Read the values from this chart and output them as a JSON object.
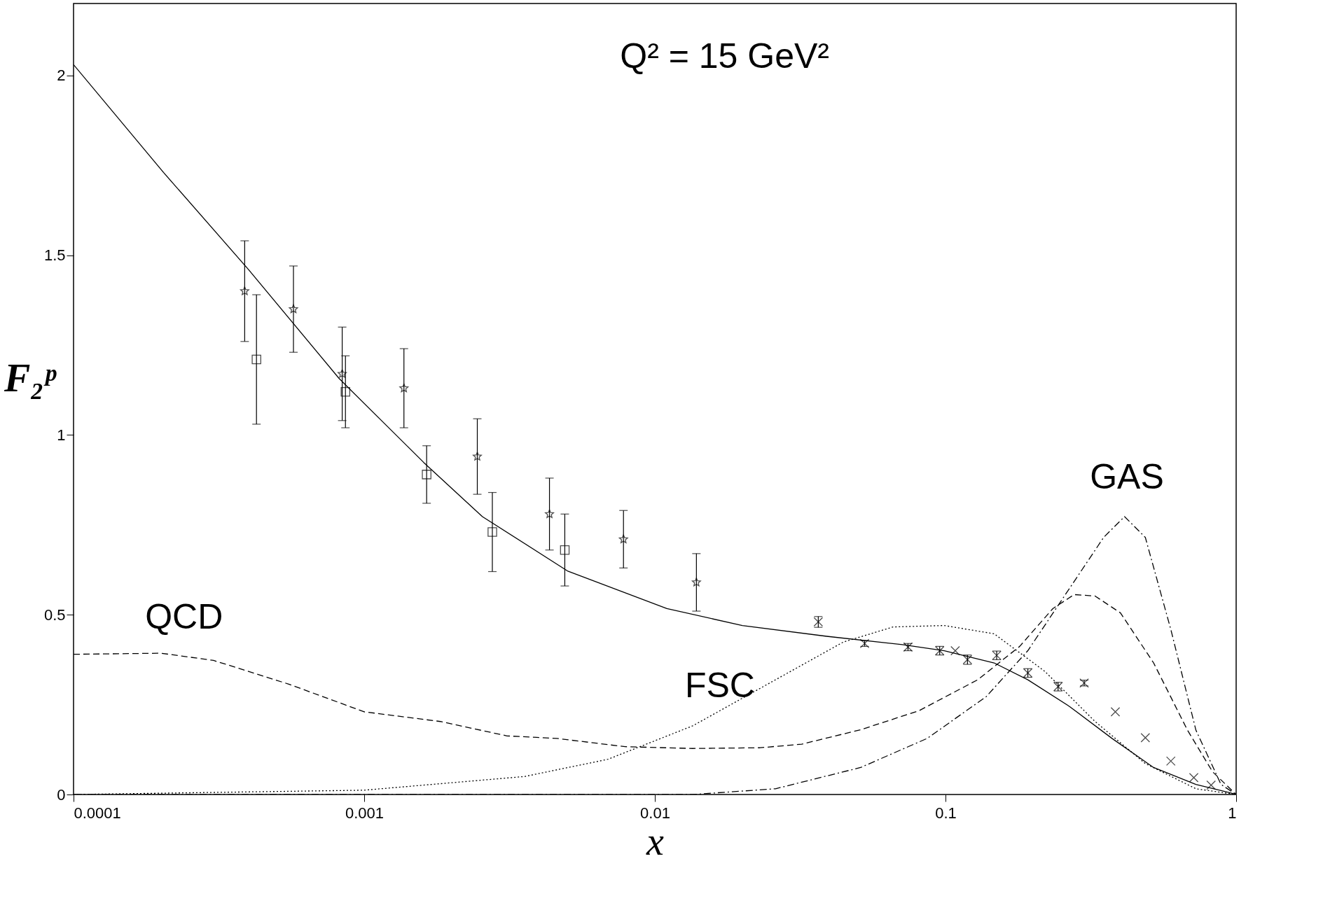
{
  "chart_data": {
    "type": "line",
    "xlabel": "x",
    "ylabel": "F₂ᵖ",
    "log": "x",
    "grid": false,
    "xlim": [
      0.0001,
      1
    ],
    "xticks": [
      0.0001,
      0.001,
      0.01,
      0.1,
      1
    ],
    "ylim": [
      0,
      2.2
    ],
    "yticks": [
      0,
      0.5,
      1,
      1.5,
      2
    ],
    "annotations": [
      "Q² = 15 GeV²",
      "QCD",
      "FSC",
      "GAS"
    ],
    "series": [
      {
        "type": "line",
        "color": "#000000",
        "line_style": "solid",
        "marker": "none",
        "x": [
          0.0001,
          0.000204,
          0.0004,
          0.00082,
          0.0016,
          0.00255,
          0.005,
          0.011,
          0.02,
          0.039,
          0.071,
          0.099,
          0.147,
          0.192,
          0.268,
          0.374,
          0.52,
          0.727,
          0.95,
          1
        ],
        "values": [
          2.03,
          1.73,
          1.46,
          1.157,
          0.924,
          0.773,
          0.622,
          0.517,
          0.47,
          0.44,
          0.417,
          0.4,
          0.366,
          0.319,
          0.244,
          0.156,
          0.075,
          0.028,
          0.005,
          0
        ]
      },
      {
        "type": "line",
        "color": "#000000",
        "line_style": "dashed",
        "marker": "none",
        "x": [
          0.0001,
          0.0002,
          0.000303,
          0.00055,
          0.001,
          0.00183,
          0.0031,
          0.0046,
          0.0079,
          0.0135,
          0.023,
          0.032,
          0.051,
          0.081,
          0.129,
          0.18,
          0.234,
          0.277,
          0.327,
          0.4,
          0.52,
          0.68,
          0.83,
          1
        ],
        "values": [
          0.39,
          0.393,
          0.373,
          0.307,
          0.23,
          0.203,
          0.163,
          0.156,
          0.133,
          0.128,
          0.13,
          0.14,
          0.18,
          0.233,
          0.319,
          0.412,
          0.517,
          0.556,
          0.552,
          0.505,
          0.366,
          0.179,
          0.063,
          0
        ]
      },
      {
        "type": "line",
        "color": "#000000",
        "line_style": "dotted",
        "marker": "none",
        "x": [
          0.0001,
          0.001,
          0.00356,
          0.0069,
          0.0135,
          0.026,
          0.0445,
          0.066,
          0.099,
          0.147,
          0.22,
          0.327,
          0.487,
          0.727,
          1
        ],
        "values": [
          0,
          0.012,
          0.05,
          0.098,
          0.191,
          0.319,
          0.424,
          0.466,
          0.47,
          0.447,
          0.342,
          0.203,
          0.086,
          0.016,
          0
        ]
      },
      {
        "type": "line",
        "color": "#000000",
        "line_style": "dashdot",
        "marker": "none",
        "x": [
          0.0001,
          0.0135,
          0.026,
          0.051,
          0.0865,
          0.138,
          0.192,
          0.268,
          0.35,
          0.413,
          0.487,
          0.596,
          0.727,
          0.887,
          1
        ],
        "values": [
          0,
          0,
          0.016,
          0.075,
          0.156,
          0.272,
          0.4,
          0.575,
          0.715,
          0.773,
          0.715,
          0.459,
          0.179,
          0.028,
          0
        ]
      },
      {
        "type": "scatter",
        "color": "#000000",
        "marker": "star",
        "x": [
          0.000388,
          0.000571,
          0.00084,
          0.00137,
          0.00245,
          0.00434,
          0.0078,
          0.0139
        ],
        "values": [
          1.4,
          1.35,
          1.17,
          1.13,
          0.94,
          0.78,
          0.71,
          0.59
        ],
        "errors": [
          0.14,
          0.12,
          0.13,
          0.11,
          0.105,
          0.1,
          0.08,
          0.08
        ]
      },
      {
        "type": "scatter",
        "color": "#000000",
        "marker": "square",
        "x": [
          0.000426,
          0.000862,
          0.00164,
          0.00276,
          0.0049
        ],
        "values": [
          1.21,
          1.12,
          0.89,
          0.73,
          0.68
        ],
        "errors": [
          0.18,
          0.1,
          0.08,
          0.11,
          0.1
        ]
      },
      {
        "type": "scatter",
        "color": "#000000",
        "marker": "cross",
        "x": [
          0.0365,
          0.0527,
          0.0743,
          0.0955,
          0.108,
          0.119,
          0.15,
          0.192,
          0.244,
          0.3,
          0.384,
          0.487,
          0.596,
          0.715,
          0.82
        ],
        "values": [
          0.48,
          0.42,
          0.41,
          0.4,
          0.4,
          0.375,
          0.387,
          0.338,
          0.3,
          0.31,
          0.23,
          0.158,
          0.093,
          0.047,
          0.026
        ],
        "errors": [
          0.015,
          0.008,
          0.01,
          0.012,
          null,
          0.013,
          0.012,
          0.012,
          0.012,
          0.008,
          null,
          null,
          null,
          null,
          null
        ]
      }
    ]
  }
}
